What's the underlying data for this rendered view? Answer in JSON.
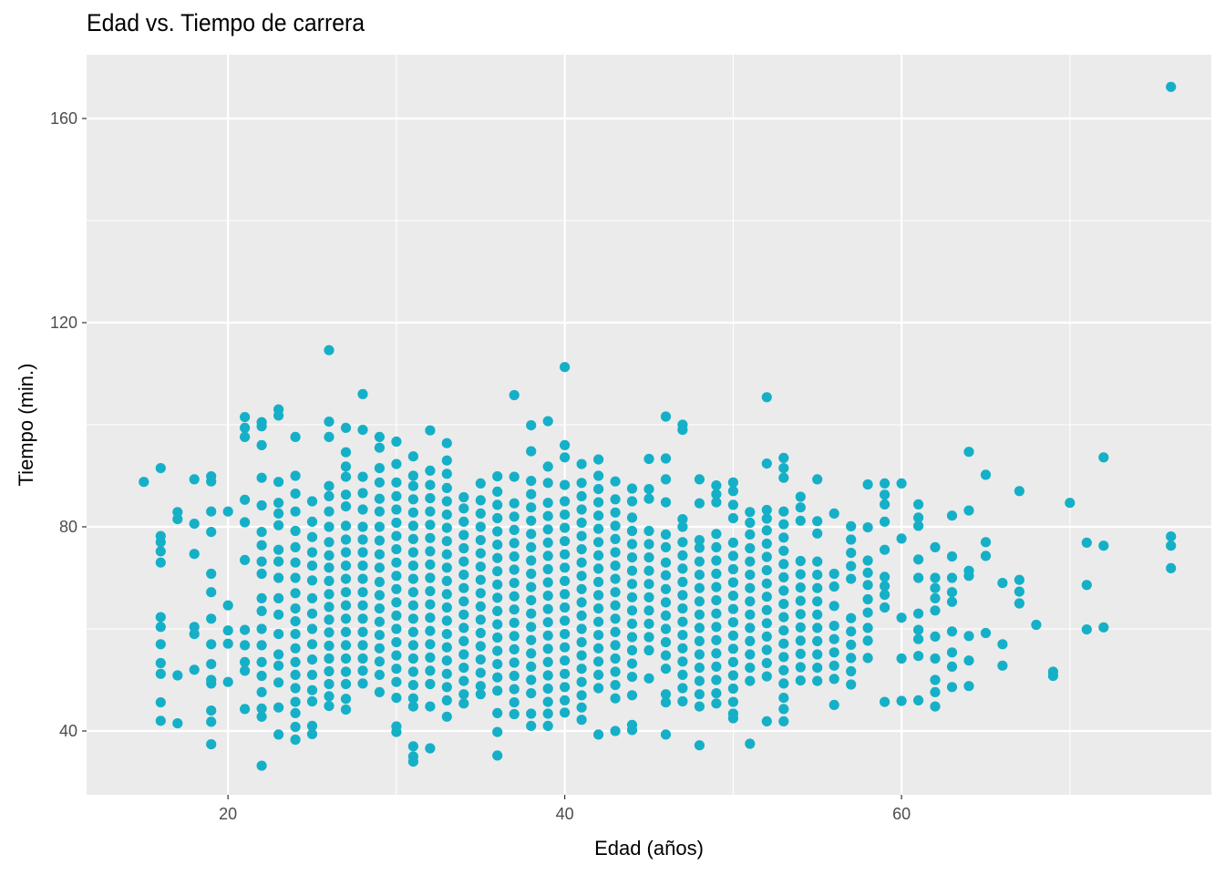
{
  "chart_data": {
    "type": "scatter",
    "title": "Edad vs. Tiempo de carrera",
    "xlabel": "Edad (años)",
    "ylabel": "Tiempo (min.)",
    "xlim": [
      11.6,
      78.4
    ],
    "ylim": [
      27.5,
      172.5
    ],
    "x_ticks": [
      20,
      40,
      60
    ],
    "y_ticks": [
      40,
      80,
      120,
      160
    ],
    "grid": true,
    "panel_background": "#EBEBEB",
    "grid_color": "#FFFFFF",
    "point_color": "#15B0C7",
    "point_radius": 5.6,
    "columns": [
      {
        "x": 15,
        "y": [
          88.8
        ]
      },
      {
        "x": 16,
        "y": [
          91.5,
          78.2,
          77.0,
          75.2,
          73.0,
          62.3,
          60.4,
          57.0,
          53.3,
          51.2,
          45.6,
          42.0
        ]
      },
      {
        "x": 17,
        "y": [
          82.9,
          81.5,
          50.9,
          41.5
        ]
      },
      {
        "x": 18,
        "y": [
          89.3,
          80.6,
          74.7,
          60.4,
          59.0,
          52.0
        ]
      },
      {
        "x": 19,
        "y": [
          89.9,
          88.9,
          83.0,
          79.0,
          70.8,
          67.2,
          62.0,
          57.0,
          53.1,
          50.0,
          49.3,
          44.0,
          41.8,
          37.4
        ]
      },
      {
        "x": 20,
        "y": [
          83.0,
          64.6,
          59.7,
          57.1,
          49.6
        ]
      },
      {
        "x": 21,
        "y": [
          101.5,
          99.4,
          97.6,
          85.3,
          80.9,
          73.5,
          59.8,
          56.8,
          53.5,
          51.8,
          44.3
        ]
      },
      {
        "x": 22,
        "y": [
          100.5,
          99.7,
          96.0,
          89.6,
          84.2,
          79.0,
          76.4,
          73.2,
          70.8,
          66.0,
          63.5,
          60.0,
          56.8,
          53.5,
          50.8,
          47.6,
          44.4,
          42.8,
          33.2
        ]
      },
      {
        "x": 23,
        "y": [
          103.0,
          101.8,
          88.8,
          84.7,
          82.6,
          80.3,
          75.5,
          73.2,
          70.0,
          66.0,
          62.8,
          59.0,
          55.0,
          52.8,
          49.5,
          44.6,
          39.3
        ]
      },
      {
        "x": 24,
        "y": [
          97.6,
          90.0,
          86.5,
          83.0,
          79.2,
          76.0,
          73.0,
          70.0,
          67.0,
          64.0,
          61.5,
          59.0,
          56.2,
          53.5,
          51.0,
          48.4,
          45.7,
          43.5,
          40.8,
          38.3
        ]
      },
      {
        "x": 25,
        "y": [
          85.0,
          81.0,
          78.0,
          75.0,
          72.4,
          69.5,
          66.0,
          63.0,
          60.0,
          57.0,
          54.0,
          51.0,
          48.0,
          45.8,
          41.0,
          39.4
        ]
      },
      {
        "x": 26,
        "y": [
          114.6,
          100.6,
          97.6,
          88.0,
          86.0,
          83.0,
          80.0,
          77.0,
          74.4,
          72.0,
          69.4,
          66.8,
          64.3,
          61.8,
          59.3,
          56.7,
          54.2,
          51.7,
          49.2,
          46.8,
          44.9
        ]
      },
      {
        "x": 27,
        "y": [
          99.4,
          94.6,
          91.8,
          89.8,
          86.3,
          84.0,
          80.2,
          77.5,
          75.0,
          72.4,
          69.8,
          67.2,
          64.6,
          62.0,
          59.4,
          56.8,
          54.2,
          51.6,
          49.2,
          46.3,
          44.2
        ]
      },
      {
        "x": 28,
        "y": [
          106.0,
          99.0,
          89.8,
          86.6,
          83.4,
          80.0,
          77.5,
          75.0,
          72.4,
          69.8,
          67.2,
          64.6,
          62.0,
          59.4,
          56.8,
          54.2,
          51.8,
          49.3
        ]
      },
      {
        "x": 29,
        "y": [
          97.6,
          95.5,
          91.5,
          88.7,
          85.5,
          83.0,
          80.0,
          77.3,
          74.6,
          72.0,
          69.2,
          66.6,
          64.0,
          61.4,
          58.8,
          56.2,
          53.6,
          51.0,
          47.6
        ]
      },
      {
        "x": 30,
        "y": [
          96.7,
          92.3,
          88.7,
          86.0,
          83.4,
          80.8,
          78.2,
          75.6,
          73.0,
          70.4,
          67.8,
          65.2,
          62.6,
          60.0,
          57.4,
          54.8,
          52.2,
          49.6,
          46.5,
          40.9,
          39.8
        ]
      },
      {
        "x": 31,
        "y": [
          93.8,
          90.0,
          88.0,
          85.4,
          82.8,
          80.2,
          77.6,
          75.0,
          72.4,
          69.8,
          67.2,
          64.6,
          62.0,
          59.4,
          56.8,
          54.2,
          51.6,
          49.0,
          46.4,
          44.8,
          37.0,
          35.0,
          34.0
        ]
      },
      {
        "x": 32,
        "y": [
          98.9,
          91.0,
          88.2,
          85.6,
          83.0,
          80.4,
          77.8,
          75.2,
          72.6,
          70.0,
          67.4,
          64.8,
          62.2,
          59.6,
          57.0,
          54.4,
          51.8,
          49.2,
          44.8,
          36.6
        ]
      },
      {
        "x": 33,
        "y": [
          96.4,
          93.0,
          90.4,
          87.6,
          85.0,
          82.4,
          79.8,
          77.2,
          74.6,
          72.0,
          69.4,
          66.8,
          64.2,
          61.6,
          59.0,
          56.4,
          53.8,
          51.2,
          48.6,
          46.0,
          42.8
        ]
      },
      {
        "x": 34,
        "y": [
          85.8,
          83.6,
          81.0,
          78.4,
          75.8,
          73.2,
          70.6,
          68.0,
          65.4,
          62.8,
          60.2,
          57.6,
          55.0,
          52.4,
          49.8,
          47.2,
          45.4
        ]
      },
      {
        "x": 35,
        "y": [
          88.5,
          85.2,
          82.6,
          80.0,
          77.4,
          74.8,
          72.2,
          69.6,
          67.0,
          64.4,
          61.8,
          59.2,
          56.6,
          54.0,
          51.4,
          48.8,
          47.2
        ]
      },
      {
        "x": 36,
        "y": [
          89.9,
          86.9,
          84.3,
          81.7,
          79.1,
          76.5,
          73.9,
          71.3,
          68.7,
          66.1,
          63.5,
          60.9,
          58.3,
          55.7,
          53.1,
          50.5,
          47.9,
          43.5,
          39.8,
          35.2
        ]
      },
      {
        "x": 37,
        "y": [
          105.8,
          89.8,
          84.6,
          82.0,
          79.4,
          76.8,
          74.2,
          71.6,
          69.0,
          66.4,
          63.8,
          61.2,
          58.6,
          56.0,
          53.4,
          50.8,
          48.2,
          45.6,
          43.3
        ]
      },
      {
        "x": 38,
        "y": [
          99.9,
          94.8,
          89.0,
          86.4,
          83.8,
          81.2,
          78.6,
          76.0,
          73.4,
          70.8,
          68.2,
          65.6,
          63.0,
          60.4,
          57.8,
          55.2,
          52.6,
          50.0,
          47.4,
          43.4,
          41.0
        ]
      },
      {
        "x": 39,
        "y": [
          100.7,
          91.8,
          88.6,
          84.7,
          82.1,
          79.5,
          76.9,
          74.3,
          71.7,
          69.1,
          66.5,
          63.9,
          61.3,
          58.7,
          56.1,
          53.5,
          50.9,
          48.3,
          45.7,
          43.4,
          41.0
        ]
      },
      {
        "x": 40,
        "y": [
          111.3,
          96.0,
          93.6,
          88.2,
          85.0,
          82.4,
          79.8,
          77.2,
          74.6,
          72.0,
          69.4,
          66.8,
          64.2,
          61.6,
          59.0,
          56.4,
          53.8,
          51.2,
          48.6,
          46.0,
          43.6
        ]
      },
      {
        "x": 41,
        "y": [
          92.3,
          88.6,
          86.0,
          83.4,
          80.8,
          78.2,
          75.6,
          73.0,
          70.4,
          67.8,
          65.2,
          62.6,
          60.0,
          57.4,
          54.8,
          52.2,
          49.6,
          47.0,
          44.6,
          42.2
        ]
      },
      {
        "x": 42,
        "y": [
          93.2,
          90.0,
          87.4,
          84.8,
          82.2,
          79.6,
          77.0,
          74.4,
          71.8,
          69.2,
          66.6,
          64.0,
          61.4,
          58.8,
          56.2,
          53.6,
          51.0,
          48.4,
          39.3
        ]
      },
      {
        "x": 43,
        "y": [
          88.9,
          85.4,
          82.8,
          80.2,
          77.6,
          75.0,
          72.4,
          69.8,
          67.2,
          64.6,
          62.0,
          59.4,
          56.8,
          54.2,
          51.6,
          49.0,
          46.4,
          40.0
        ]
      },
      {
        "x": 44,
        "y": [
          87.5,
          85.0,
          81.8,
          79.2,
          76.6,
          74.0,
          71.4,
          68.8,
          66.2,
          63.6,
          61.0,
          58.4,
          55.8,
          53.2,
          50.6,
          47.0,
          41.2,
          40.2
        ]
      },
      {
        "x": 45,
        "y": [
          93.3,
          87.4,
          85.5,
          79.2,
          76.6,
          74.0,
          71.4,
          68.8,
          66.2,
          63.6,
          61.0,
          58.4,
          55.8,
          50.3
        ]
      },
      {
        "x": 46,
        "y": [
          101.6,
          93.4,
          89.3,
          84.8,
          78.5,
          76.0,
          73.0,
          70.5,
          67.8,
          65.2,
          62.6,
          60.0,
          57.4,
          54.8,
          52.2,
          47.2,
          45.6,
          39.3
        ]
      },
      {
        "x": 47,
        "y": [
          100.0,
          99.0,
          81.5,
          80.0,
          77.0,
          74.4,
          71.8,
          69.2,
          66.6,
          64.0,
          61.4,
          58.8,
          56.2,
          53.6,
          51.0,
          48.4,
          45.8
        ]
      },
      {
        "x": 48,
        "y": [
          89.3,
          84.6,
          77.4,
          75.9,
          73.2,
          70.6,
          68.0,
          65.4,
          62.8,
          60.2,
          57.6,
          55.0,
          52.4,
          49.8,
          47.2,
          44.8,
          37.2
        ]
      },
      {
        "x": 49,
        "y": [
          88.1,
          86.4,
          84.8,
          78.6,
          76.0,
          73.4,
          70.8,
          68.2,
          65.6,
          63.0,
          60.4,
          57.8,
          55.2,
          52.6,
          50.0,
          47.4,
          45.4
        ]
      },
      {
        "x": 50,
        "y": [
          88.7,
          87.0,
          84.3,
          81.7,
          76.9,
          74.3,
          71.7,
          69.1,
          66.5,
          63.9,
          61.3,
          58.7,
          56.1,
          53.5,
          50.9,
          48.3,
          45.7,
          43.4,
          42.5
        ]
      },
      {
        "x": 51,
        "y": [
          82.9,
          80.8,
          78.5,
          75.8,
          73.2,
          70.6,
          68.0,
          65.4,
          62.8,
          60.2,
          57.6,
          55.0,
          52.4,
          49.8,
          37.5
        ]
      },
      {
        "x": 52,
        "y": [
          105.4,
          92.4,
          83.3,
          81.6,
          79.3,
          76.7,
          74.1,
          71.5,
          68.9,
          66.3,
          63.7,
          61.1,
          58.5,
          55.9,
          53.3,
          50.7,
          41.9
        ]
      },
      {
        "x": 53,
        "y": [
          93.5,
          91.5,
          89.6,
          83.0,
          80.5,
          77.9,
          75.3,
          72.7,
          70.1,
          67.5,
          64.9,
          62.3,
          59.7,
          57.1,
          54.5,
          51.9,
          49.3,
          46.5,
          44.3,
          41.9
        ]
      },
      {
        "x": 54,
        "y": [
          85.9,
          83.8,
          81.2,
          73.3,
          70.7,
          68.1,
          65.5,
          62.9,
          60.3,
          57.7,
          55.1,
          52.5,
          49.9
        ]
      },
      {
        "x": 55,
        "y": [
          89.3,
          81.1,
          78.7,
          73.2,
          70.6,
          68.0,
          65.4,
          62.8,
          60.2,
          57.6,
          55.0,
          52.4,
          49.8
        ]
      },
      {
        "x": 56,
        "y": [
          82.6,
          70.8,
          68.3,
          64.5,
          60.6,
          58.0,
          55.4,
          52.8,
          50.2,
          45.1
        ]
      },
      {
        "x": 57,
        "y": [
          80.1,
          77.5,
          74.9,
          72.3,
          69.8,
          62.1,
          59.5,
          56.9,
          54.3,
          51.7,
          49.1
        ]
      },
      {
        "x": 58,
        "y": [
          88.3,
          79.9,
          73.4,
          71.0,
          68.6,
          65.8,
          63.2,
          60.2,
          57.7,
          54.3
        ]
      },
      {
        "x": 59,
        "y": [
          88.5,
          86.3,
          84.4,
          81.0,
          75.5,
          70.2,
          68.4,
          66.7,
          64.2,
          45.7
        ]
      },
      {
        "x": 60,
        "y": [
          88.5,
          77.7,
          62.2,
          54.2,
          45.9
        ]
      },
      {
        "x": 61,
        "y": [
          84.4,
          81.8,
          80.2,
          73.6,
          70.0,
          63.0,
          59.8,
          58.0,
          54.7,
          46.0
        ]
      },
      {
        "x": 62,
        "y": [
          76.0,
          70.0,
          68.0,
          66.0,
          63.6,
          58.5,
          54.2,
          50.0,
          47.6,
          44.8
        ]
      },
      {
        "x": 63,
        "y": [
          82.2,
          74.2,
          70.0,
          67.2,
          65.3,
          59.5,
          55.4,
          52.6,
          48.6
        ]
      },
      {
        "x": 64,
        "y": [
          94.7,
          83.2,
          71.4,
          70.4,
          58.6,
          53.8,
          48.8
        ]
      },
      {
        "x": 65,
        "y": [
          90.2,
          77.0,
          74.3,
          59.2
        ]
      },
      {
        "x": 66,
        "y": [
          69.0,
          57.0,
          52.8
        ]
      },
      {
        "x": 67,
        "y": [
          87.0,
          69.6,
          67.3,
          65.0
        ]
      },
      {
        "x": 68,
        "y": [
          60.8
        ]
      },
      {
        "x": 69,
        "y": [
          51.6,
          50.8
        ]
      },
      {
        "x": 70,
        "y": [
          84.7
        ]
      },
      {
        "x": 71,
        "y": [
          76.9,
          68.6,
          59.9
        ]
      },
      {
        "x": 72,
        "y": [
          93.6,
          76.3,
          60.3
        ]
      },
      {
        "x": 76,
        "y": [
          166.2,
          78.1,
          76.3,
          71.9
        ]
      }
    ]
  }
}
